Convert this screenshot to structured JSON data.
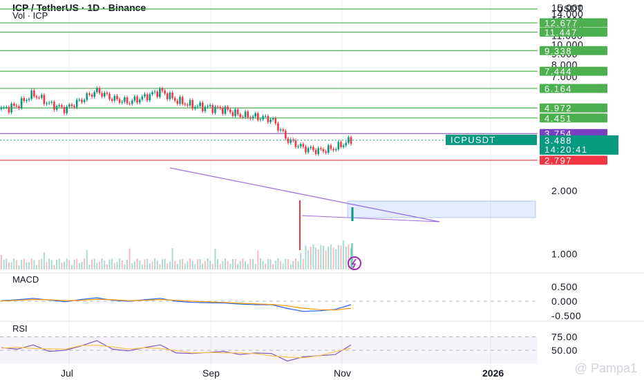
{
  "header": {
    "title": "ICP / TetherUS · 1D · Binance",
    "volume": "Vol · ICP"
  },
  "panes": {
    "macd_label": "MACD",
    "rsi_label": "RSI"
  },
  "watermark": "@ Pampa1",
  "colors": {
    "level_green": "#4caf50",
    "level_red": "#f23645",
    "level_purple": "#7b3fc4",
    "ticker_teal": "#089981",
    "up": "#089981",
    "down": "#f23645",
    "trend": "#9c6ade",
    "macd": "#2962ff",
    "signal": "#ff9800",
    "rsi": "#7e57c2"
  },
  "chart_data": {
    "type": "line",
    "title": "ICP / TetherUS · 1D · Binance",
    "ylabel": "USDT",
    "price_axis": {
      "unit": "USDT",
      "ticks": [
        "15.000",
        "14.000",
        "13.000",
        "12.000",
        "11.000",
        "10.000",
        "9.000",
        "8.000",
        "7.000",
        "2.000",
        "1.000"
      ],
      "scale": "log"
    },
    "time_axis": {
      "ticks": [
        "Jul",
        "Sep",
        "Nov",
        "2026"
      ]
    },
    "level_labels": [
      {
        "value": 12.677,
        "text": "12.677",
        "color": "green"
      },
      {
        "value": 11.447,
        "text": "11.447",
        "color": "green"
      },
      {
        "value": 9.338,
        "text": "9.338",
        "color": "green"
      },
      {
        "value": 7.444,
        "text": "7.444",
        "color": "green"
      },
      {
        "value": 6.164,
        "text": "6.164",
        "color": "green"
      },
      {
        "value": 4.972,
        "text": "4.972",
        "color": "green"
      },
      {
        "value": 4.451,
        "text": "4.451",
        "color": "green"
      },
      {
        "value": 3.754,
        "text": "3.754",
        "color": "purple"
      },
      {
        "value": 3.488,
        "text": "3.488",
        "color": "teal"
      },
      {
        "value": 2.797,
        "text": "2.797",
        "color": "red"
      }
    ],
    "ticker": {
      "symbol": "ICPUSDT",
      "price": "3.488",
      "countdown": "14:20:41"
    },
    "price_series": {
      "name": "ICPUSDT",
      "x": [
        "2025-06-06",
        "2025-06-13",
        "2025-06-20",
        "2025-06-27",
        "2025-07-04",
        "2025-07-11",
        "2025-07-18",
        "2025-07-25",
        "2025-08-01",
        "2025-08-08",
        "2025-08-15",
        "2025-08-22",
        "2025-08-29",
        "2025-09-05",
        "2025-09-12",
        "2025-09-19",
        "2025-09-26",
        "2025-10-03",
        "2025-10-10",
        "2025-10-17",
        "2025-10-24",
        "2025-10-31",
        "2025-11-03"
      ],
      "close": [
        4.9,
        5.1,
        5.8,
        5.2,
        4.9,
        5.4,
        6.0,
        5.5,
        5.3,
        5.6,
        6.0,
        5.4,
        5.1,
        5.0,
        4.9,
        4.6,
        4.5,
        4.4,
        3.5,
        3.2,
        3.1,
        3.2,
        3.488
      ]
    },
    "macd": {
      "axis_ticks": [
        "0.500",
        "0.000",
        "-0.500"
      ],
      "macd": [
        0.02,
        0.05,
        0.1,
        0.04,
        -0.02,
        0.06,
        0.12,
        0.03,
        0.0,
        0.05,
        0.1,
        0.0,
        -0.04,
        -0.05,
        -0.06,
        -0.1,
        -0.12,
        -0.12,
        -0.25,
        -0.35,
        -0.33,
        -0.28,
        -0.12
      ],
      "signal": [
        0.01,
        0.03,
        0.06,
        0.05,
        0.02,
        0.03,
        0.07,
        0.05,
        0.02,
        0.03,
        0.06,
        0.03,
        0.0,
        -0.02,
        -0.04,
        -0.07,
        -0.09,
        -0.11,
        -0.16,
        -0.24,
        -0.29,
        -0.3,
        -0.24
      ]
    },
    "rsi": {
      "axis_ticks": [
        "75.00",
        "50.00"
      ],
      "values": [
        55,
        52,
        60,
        48,
        50,
        58,
        68,
        52,
        49,
        55,
        60,
        45,
        44,
        46,
        48,
        42,
        45,
        44,
        30,
        38,
        40,
        42,
        60
      ]
    },
    "grid": true
  }
}
